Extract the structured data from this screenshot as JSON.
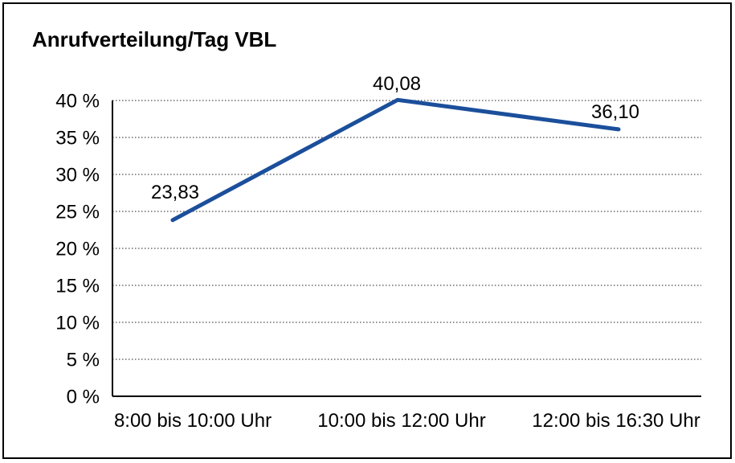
{
  "chart_data": {
    "type": "line",
    "title": "Anrufverteilung/Tag VBL",
    "categories": [
      "8:00 bis 10:00 Uhr",
      "10:00 bis 12:00 Uhr",
      "12:00 bis 16:30 Uhr"
    ],
    "values": [
      23.83,
      40.08,
      36.1
    ],
    "data_labels": [
      "23,83",
      "40,08",
      "36,10"
    ],
    "xlabel": "",
    "ylabel": "",
    "ylim": [
      0,
      40
    ],
    "ytick_step": 5,
    "ytick_labels": [
      "0 %",
      "5 %",
      "10 %",
      "15 %",
      "20 %",
      "25 %",
      "30 %",
      "35 %",
      "40 %"
    ],
    "grid": "horizontal-dotted",
    "legend": "none",
    "line_color": "#1b4f9b",
    "grid_color": "#4d4d4d",
    "axis_color": "#000000",
    "text_color": "#000000",
    "border_color": "#000000",
    "background": "#ffffff"
  }
}
